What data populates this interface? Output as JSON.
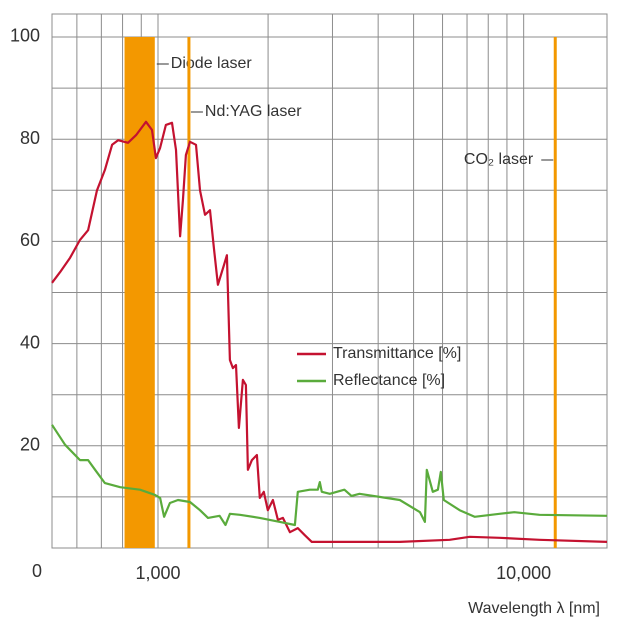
{
  "chart_data": {
    "type": "line",
    "x_label": "Wavelength λ [nm]",
    "xscale": "log",
    "xlim": [
      513,
      16900
    ],
    "xticks": [
      {
        "value": 1000,
        "label": "1,000"
      },
      {
        "value": 10000,
        "label": "10,000"
      }
    ],
    "xminor": [
      600,
      700,
      800,
      900,
      2000,
      3000,
      4000,
      5000,
      6000,
      7000,
      8000,
      9000
    ],
    "ylim": [
      0,
      104.5
    ],
    "yticks": [
      0,
      20,
      40,
      60,
      80,
      100
    ],
    "yminor": [
      10,
      30,
      50,
      70,
      90
    ],
    "grid": true,
    "series": [
      {
        "name": "Transmittance [%]",
        "color": "#c41230",
        "x": [
          513,
          540,
          575,
          612,
          644,
          681,
          716,
          749,
          778,
          828,
          871,
          927,
          963,
          987,
          1013,
          1051,
          1092,
          1120,
          1149,
          1170,
          1192,
          1223,
          1270,
          1303,
          1344,
          1387,
          1422,
          1458,
          1515,
          1543,
          1573,
          1603,
          1634,
          1664,
          1707,
          1739,
          1761,
          1806,
          1864,
          1898,
          1947,
          1997,
          2062,
          2128,
          2195,
          2294,
          2412,
          2521,
          2634,
          2950,
          4585,
          6273,
          7119,
          8590,
          11050,
          16900
        ],
        "values": [
          51.9,
          54,
          56.8,
          60.3,
          62.2,
          70,
          74,
          78.9,
          79.8,
          79.3,
          80.8,
          83.4,
          81.8,
          76.3,
          78.3,
          82.8,
          83.2,
          77.9,
          61,
          68,
          76.9,
          79.5,
          78.9,
          70,
          65.2,
          66.1,
          58.7,
          51.5,
          55.4,
          57.3,
          36.8,
          35.2,
          35.8,
          23.5,
          32.9,
          31.9,
          15.3,
          17.2,
          18.2,
          9.8,
          11,
          7.4,
          9.4,
          5.5,
          5.9,
          3.1,
          3.9,
          2.5,
          1.2,
          1.2,
          1.2,
          1.6,
          2.2,
          2,
          1.6,
          1.2
        ]
      },
      {
        "name": "Reflectance [%]",
        "color": "#5aab3c",
        "x": [
          513,
          557,
          612,
          644,
          673,
          716,
          788,
          893,
          981,
          1013,
          1039,
          1078,
          1134,
          1223,
          1303,
          1370,
          1474,
          1530,
          1573,
          1675,
          1898,
          2154,
          2368,
          2412,
          2602,
          2735,
          2770,
          2805,
          2950,
          3235,
          3382,
          3556,
          4585,
          5207,
          5368,
          5435,
          5644,
          5826,
          5934,
          6047,
          6686,
          7342,
          8590,
          9430,
          11050,
          16900
        ],
        "values": [
          24.1,
          20.2,
          17.2,
          17.2,
          15.3,
          12.7,
          11.9,
          11.4,
          10.4,
          9.8,
          6.1,
          8.8,
          9.4,
          9,
          7.4,
          5.9,
          6.3,
          4.5,
          6.7,
          6.5,
          5.9,
          5.1,
          4.5,
          11,
          11.4,
          11.4,
          12.9,
          11,
          10.6,
          11.4,
          10.2,
          10.6,
          9.4,
          7,
          5.1,
          15.3,
          11,
          11.4,
          14.9,
          9.4,
          7.4,
          6.1,
          6.7,
          7,
          6.5,
          6.3
        ]
      }
    ],
    "lasers": [
      {
        "label": "Diode laser",
        "x": [
          810,
          980
        ],
        "top": 100,
        "color": "#f39800"
      },
      {
        "label": "Nd:YAG laser",
        "x": [
          1215
        ],
        "top": 100,
        "color": "#f39800"
      },
      {
        "label": "CO₂ laser",
        "x": [
          12200
        ],
        "top": 100,
        "color": "#f39800"
      }
    ]
  }
}
